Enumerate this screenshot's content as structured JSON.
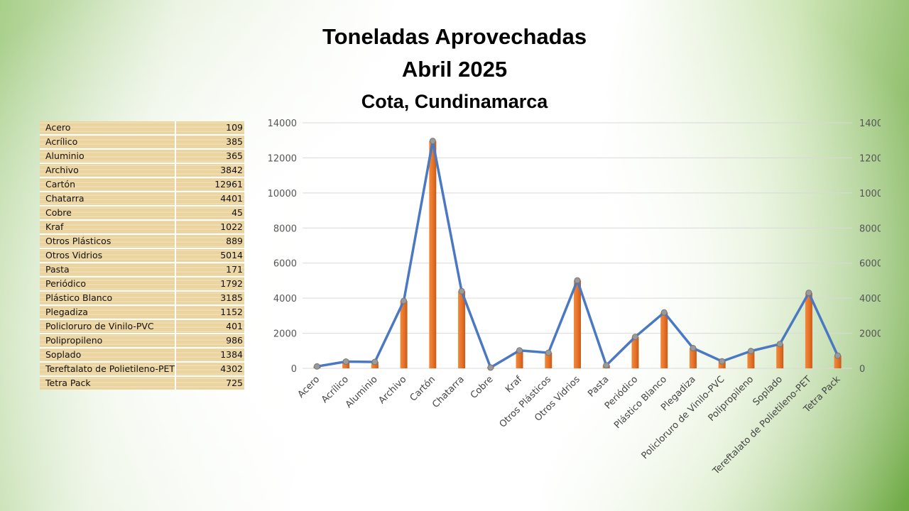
{
  "title_line1": "Toneladas Aprovechadas",
  "title_line2": "Abril 2025",
  "subtitle": "Cota, Cundinamarca",
  "table": {
    "rows": [
      {
        "label": "Acero",
        "value": "109"
      },
      {
        "label": "Acrílico",
        "value": "385"
      },
      {
        "label": "Aluminio",
        "value": "365"
      },
      {
        "label": "Archivo",
        "value": "3842"
      },
      {
        "label": "Cartón",
        "value": "12961"
      },
      {
        "label": "Chatarra",
        "value": "4401"
      },
      {
        "label": "Cobre",
        "value": "45"
      },
      {
        "label": "Kraf",
        "value": "1022"
      },
      {
        "label": "Otros Plásticos",
        "value": "889"
      },
      {
        "label": "Otros Vidrios",
        "value": "5014"
      },
      {
        "label": "Pasta",
        "value": "171"
      },
      {
        "label": "Periódico",
        "value": "1792"
      },
      {
        "label": "Plástico Blanco",
        "value": "3185"
      },
      {
        "label": "Plegadiza",
        "value": "1152"
      },
      {
        "label": "Policloruro de Vinilo-PVC",
        "value": "401"
      },
      {
        "label": "Polipropileno",
        "value": "986"
      },
      {
        "label": "Soplado",
        "value": "1384"
      },
      {
        "label": "Tereftalato de Polietileno-PET",
        "value": "4302"
      },
      {
        "label": "Tetra Pack",
        "value": "725"
      }
    ]
  },
  "chart_data": {
    "type": "bar",
    "combo": "bar+line",
    "title": "Toneladas Aprovechadas Abril 2025",
    "subtitle": "Cota, Cundinamarca",
    "categories": [
      "Acero",
      "Acrílico",
      "Aluminio",
      "Archivo",
      "Cartón",
      "Chatarra",
      "Cobre",
      "Kraf",
      "Otros Plásticos",
      "Otros Vidrios",
      "Pasta",
      "Periódico",
      "Plástico Blanco",
      "Plegadiza",
      "Policloruro de Vinilo-PVC",
      "Polipropileno",
      "Soplado",
      "Tereftalato de Polietileno-PET",
      "Tetra Pack"
    ],
    "series": [
      {
        "type": "bar",
        "color": "#e8742a",
        "values": [
          109,
          385,
          365,
          3842,
          12961,
          4401,
          45,
          1022,
          889,
          5014,
          171,
          1792,
          3185,
          1152,
          401,
          986,
          1384,
          4302,
          725
        ]
      },
      {
        "type": "line",
        "color": "#4a78c2",
        "marker_color": "#9a9a9a",
        "values": [
          109,
          385,
          365,
          3842,
          12961,
          4401,
          45,
          1022,
          889,
          5014,
          171,
          1792,
          3185,
          1152,
          401,
          986,
          1384,
          4302,
          725
        ]
      }
    ],
    "ylim": [
      0,
      14000
    ],
    "yticks": [
      0,
      2000,
      4000,
      6000,
      8000,
      10000,
      12000,
      14000
    ],
    "secondary_axis": true,
    "grid": true,
    "xlabel": "",
    "ylabel": ""
  }
}
